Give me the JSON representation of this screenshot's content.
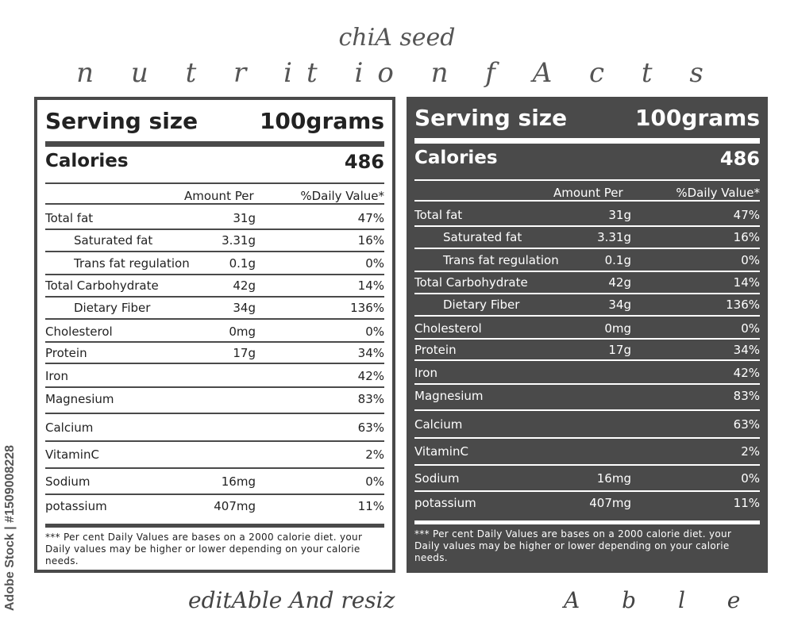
{
  "header": {
    "title_line1": "chiA seed",
    "title_line2": "n u t r it io n  f A c t s"
  },
  "footer_text": {
    "left": "editAble And resiz",
    "right": "A b l e"
  },
  "side_credit": "Adobe Stock | #1509008228",
  "label": {
    "serving_label": "Serving size",
    "serving_value": "100grams",
    "calories_label": "Calories",
    "calories_value": "486",
    "col_amount": "Amount Per",
    "col_daily": "%Daily Value*",
    "rows": [
      {
        "name": "Total fat",
        "amount": "31g",
        "dv": "47%"
      },
      {
        "name": "Saturated fat",
        "amount": "3.31g",
        "dv": "16%"
      },
      {
        "name": "Trans fat regulation",
        "amount": "0.1g",
        "dv": "0%"
      },
      {
        "name": "Total  Carbohydrate",
        "amount": "42g",
        "dv": "14%"
      },
      {
        "name": "Dietary  Fiber",
        "amount": "34g",
        "dv": "136%"
      },
      {
        "name": "Cholesterol",
        "amount": "0mg",
        "dv": "0%"
      },
      {
        "name": "Protein",
        "amount": "17g",
        "dv": "34%"
      },
      {
        "name": "Iron",
        "amount": "",
        "dv": "42%"
      },
      {
        "name": "Magnesium",
        "amount": "",
        "dv": "83%"
      },
      {
        "name": "Calcium",
        "amount": "",
        "dv": "63%"
      },
      {
        "name": "VitaminC",
        "amount": "",
        "dv": "2%"
      },
      {
        "name": "Sodium",
        "amount": "16mg",
        "dv": "0%"
      },
      {
        "name": "potassium",
        "amount": "407mg",
        "dv": "11%"
      }
    ],
    "footnote": "*** Per cent Daily Values are bases on a 2000 calorie diet. your Daily values may be higher or lower depending on your calorie needs."
  },
  "colors": {
    "dark_panel": "#4a4a4a",
    "light_panel": "#ffffff",
    "title_text": "#555555"
  }
}
